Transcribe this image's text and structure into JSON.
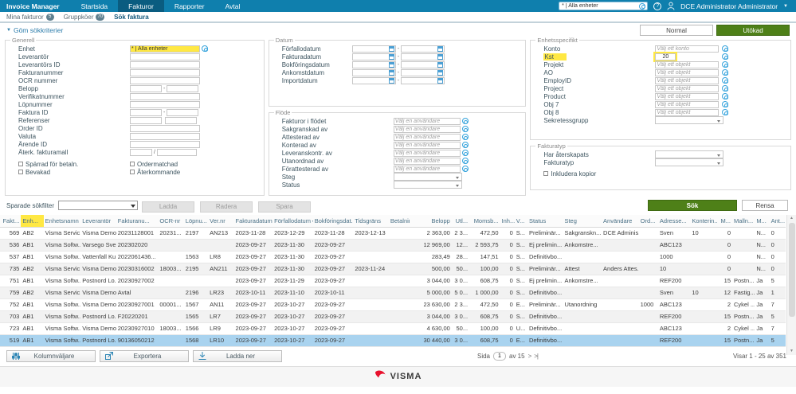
{
  "topnav": {
    "brand": "Invoice Manager",
    "items": [
      {
        "label": "Startsida",
        "active": false
      },
      {
        "label": "Fakturor",
        "active": true
      },
      {
        "label": "Rapporter",
        "active": false
      },
      {
        "label": "Avtal",
        "active": false
      }
    ],
    "unit_filter": {
      "value": "* | Alla enheter"
    },
    "help_label": "?",
    "user": "DCE Administrator Administrator"
  },
  "subnav": {
    "items": [
      {
        "label": "Mina fakturor",
        "badge": "5",
        "active": false
      },
      {
        "label": "Gruppköer",
        "badge": "70",
        "active": false
      },
      {
        "label": "Sök faktura",
        "active": true
      }
    ]
  },
  "toolbar": {
    "hide_criteria": "Göm sökkriterier",
    "normal": "Normal",
    "extended": "Utökad"
  },
  "form": {
    "generell": {
      "legend": "Generell",
      "fields": [
        {
          "label": "Enhet",
          "type": "unit",
          "value": "* | Alla enheter",
          "highlight_value": true
        },
        {
          "label": "Leverantör",
          "type": "text"
        },
        {
          "label": "Leverantörs ID",
          "type": "text"
        },
        {
          "label": "Fakturanummer",
          "type": "text"
        },
        {
          "label": "OCR nummer",
          "type": "text"
        },
        {
          "label": "Belopp",
          "type": "range"
        },
        {
          "label": "Verifikatnummer",
          "type": "text"
        },
        {
          "label": "Löpnummer",
          "type": "text"
        },
        {
          "label": "Faktura ID",
          "type": "range"
        },
        {
          "label": "Referenser",
          "type": "pair"
        },
        {
          "label": "Order ID",
          "type": "text"
        },
        {
          "label": "Valuta",
          "type": "text"
        },
        {
          "label": "Ärende ID",
          "type": "text"
        },
        {
          "label": "Återk. fakturamall",
          "type": "slash"
        }
      ],
      "checkbox_columns": [
        [
          "Spärrad för betaln.",
          "Bevakad"
        ],
        [
          "Ordermatchad",
          "Återkommande"
        ]
      ]
    },
    "datum": {
      "legend": "Datum",
      "fields": [
        "Förfallodatum",
        "Fakturadatum",
        "Bokföringsdatum",
        "Ankomstdatum",
        "Importdatum"
      ]
    },
    "flode": {
      "legend": "Flöde",
      "placeholder": "Välj en användare",
      "user_fields": [
        "Fakturor i flödet",
        "Sakgranskad av",
        "Attesterad av",
        "Konterad av",
        "Leveranskontr. av",
        "Utanordnad av",
        "Förattesterad av"
      ],
      "selects": [
        "Steg",
        "Status"
      ]
    },
    "enhetsspecifikt": {
      "legend": "Enhetsspecifikt",
      "fields": [
        {
          "label": "Konto",
          "placeholder": "Välj ett konto"
        },
        {
          "label": "Kst",
          "value": "20",
          "highlight": true
        },
        {
          "label": "Projekt",
          "placeholder": "Välj ett objekt"
        },
        {
          "label": "AO",
          "placeholder": "Välj ett objekt"
        },
        {
          "label": "EmployID",
          "placeholder": "Välj ett objekt"
        },
        {
          "label": "Project",
          "placeholder": "Välj ett objekt"
        },
        {
          "label": "Product",
          "placeholder": "Välj ett objekt"
        },
        {
          "label": "Obj 7",
          "placeholder": "Välj ett objekt"
        },
        {
          "label": "Obj 8",
          "placeholder": "Välj ett objekt"
        }
      ],
      "select_label": "Sekretessgrupp"
    },
    "fakturatyp": {
      "legend": "Fakturatyp",
      "selects": [
        "Har återskapats",
        "Fakturatyp"
      ],
      "checkbox": "Inkludera kopior"
    },
    "saved_filter": {
      "label": "Sparade sökfilter",
      "buttons": [
        "Ladda",
        "Radera",
        "Spara"
      ]
    },
    "search_button": "Sök",
    "clear_button": "Rensa"
  },
  "table": {
    "columns": [
      {
        "label": "Fakt...",
        "align": "right"
      },
      {
        "label": "Enh...",
        "highlight": true
      },
      {
        "label": "Enhetsnamn"
      },
      {
        "label": "Leverantör"
      },
      {
        "label": "Fakturanu..."
      },
      {
        "label": "OCR-nr"
      },
      {
        "label": "Löpnu..."
      },
      {
        "label": "Ver.nr"
      },
      {
        "label": "Fakturadatum"
      },
      {
        "label": "Förfallodatum",
        "sort": "desc"
      },
      {
        "label": "Bokföringsdat..."
      },
      {
        "label": "Tidsgräns"
      },
      {
        "label": "Betalningsdat..."
      },
      {
        "label": "Belopp",
        "align": "right"
      },
      {
        "label": "Utl...",
        "align": "right"
      },
      {
        "label": "Momsb...",
        "align": "right"
      },
      {
        "label": "Inh...",
        "align": "right"
      },
      {
        "label": "V..."
      },
      {
        "label": "Status"
      },
      {
        "label": "Steg"
      },
      {
        "label": "Användare"
      },
      {
        "label": "Ord..."
      },
      {
        "label": "Adresse..."
      },
      {
        "label": "Konterin..."
      },
      {
        "label": "M...",
        "align": "right"
      },
      {
        "label": "Malln..."
      },
      {
        "label": "M..."
      },
      {
        "label": "Ant..."
      }
    ],
    "rows": [
      [
        "569",
        "AB2",
        "Visma Servic...",
        "Visma Demo...",
        "20231128001",
        "20231...",
        "2197",
        "AN213",
        "2023-11-28",
        "2023-12-29",
        "2023-11-28",
        "2023-12-13",
        "",
        "2 363,00",
        "2 3...",
        "472,50",
        "0",
        "S...",
        "Preliminär...",
        "Sakgranskn...",
        "DCE Adminis...",
        "",
        "Sven",
        "10",
        "0",
        "",
        "N...",
        "0"
      ],
      [
        "536",
        "AB1",
        "Visma Softw...",
        "Varsego Sver...",
        "202302020",
        "",
        "",
        "",
        "2023-09-27",
        "2023-11-30",
        "2023-09-27",
        "",
        "",
        "12 969,00",
        "12...",
        "2 593,75",
        "0",
        "S...",
        "Ej prelimin...",
        "Ankomstre...",
        "",
        "",
        "ABC123",
        "",
        "0",
        "",
        "N...",
        "0"
      ],
      [
        "537",
        "AB1",
        "Visma Softw...",
        "Vattenfall Ku...",
        "2022061436...",
        "",
        "1563",
        "LR8",
        "2023-09-27",
        "2023-11-30",
        "2023-09-27",
        "",
        "",
        "283,49",
        "28...",
        "147,51",
        "0",
        "S...",
        "Definitivbo...",
        "",
        "",
        "",
        "1000",
        "",
        "0",
        "",
        "N...",
        "0"
      ],
      [
        "735",
        "AB2",
        "Visma Servic...",
        "Visma Demo...",
        "20230316002",
        "18003...",
        "2195",
        "AN211",
        "2023-09-27",
        "2023-11-30",
        "2023-09-27",
        "2023-11-24",
        "",
        "500,00",
        "50...",
        "100,00",
        "0",
        "S...",
        "Preliminär...",
        "Attest",
        "Anders Attes...",
        "",
        "10",
        "",
        "0",
        "",
        "N...",
        "0"
      ],
      [
        "751",
        "AB1",
        "Visma Softw...",
        "Postnord Lo...",
        "20230927002",
        "",
        "",
        "",
        "2023-09-27",
        "2023-11-29",
        "2023-09-27",
        "",
        "",
        "3 044,00",
        "3 0...",
        "608,75",
        "0",
        "S...",
        "Ej prelimin...",
        "Ankomstre...",
        "",
        "",
        "REF200",
        "",
        "15",
        "Postn...",
        "Ja",
        "5"
      ],
      [
        "759",
        "AB2",
        "Visma Servic...",
        "Visma Demo...",
        "Avtal",
        "",
        "2196",
        "LR23",
        "2023-10-11",
        "2023-11-10",
        "2023-10-11",
        "",
        "",
        "5 000,00",
        "5 0...",
        "1 000,00",
        "0",
        "S...",
        "Definitivbo...",
        "",
        "",
        "",
        "Sven",
        "10",
        "12",
        "Fastig...",
        "Ja",
        "1"
      ],
      [
        "752",
        "AB1",
        "Visma Softw...",
        "Visma Demo...",
        "20230927001",
        "00001...",
        "1567",
        "AN11",
        "2023-09-27",
        "2023-10-27",
        "2023-09-27",
        "",
        "",
        "23 630,00",
        "2 3...",
        "472,50",
        "0",
        "E...",
        "Preliminär...",
        "Utanordning",
        "",
        "1000",
        "ABC123",
        "",
        "2",
        "Cykel ...",
        "Ja",
        "7"
      ],
      [
        "703",
        "AB1",
        "Visma Softw...",
        "Postnord Lo...",
        "F20220201",
        "",
        "1565",
        "LR7",
        "2023-09-27",
        "2023-10-27",
        "2023-09-27",
        "",
        "",
        "3 044,00",
        "3 0...",
        "608,75",
        "0",
        "S...",
        "Definitivbo...",
        "",
        "",
        "",
        "REF200",
        "",
        "15",
        "Postn...",
        "Ja",
        "5"
      ],
      [
        "723",
        "AB1",
        "Visma Softw...",
        "Visma Demo...",
        "20230927010",
        "18003...",
        "1566",
        "LR9",
        "2023-09-27",
        "2023-10-27",
        "2023-09-27",
        "",
        "",
        "4 630,00",
        "50...",
        "100,00",
        "0",
        "U...",
        "Definitivbo...",
        "",
        "",
        "",
        "ABC123",
        "",
        "2",
        "Cykel ...",
        "Ja",
        "7"
      ],
      [
        "519",
        "AB1",
        "Visma Softw...",
        "Postnord Lo...",
        "90136050212",
        "",
        "1568",
        "LR10",
        "2023-09-27",
        "2023-10-27",
        "2023-09-27",
        "",
        "",
        "30 440,00",
        "3 0...",
        "608,75",
        "0",
        "E...",
        "Definitivbo...",
        "",
        "",
        "",
        "REF200",
        "",
        "15",
        "Postn...",
        "Ja",
        "5"
      ]
    ],
    "selected_row_index": 9
  },
  "footer": {
    "buttons": [
      {
        "label": "Kolumnväljare",
        "icon": "sliders-icon"
      },
      {
        "label": "Exportera",
        "icon": "export-icon"
      },
      {
        "label": "Ladda ner",
        "icon": "download-icon"
      }
    ],
    "pagination": {
      "page_label": "Sida",
      "page": "1",
      "of": "av 15",
      "next": ">",
      "last": ">|"
    },
    "showing": "Visar 1 - 25 av 351",
    "logo": "VISMA"
  },
  "colors": {
    "topnav_bg": "#0f7fad",
    "topnav_active_bg": "#0a5c80",
    "green_button": "#4e8018",
    "highlight_yellow": "#ffe843",
    "selected_row": "#a9d3ef",
    "visma_red": "#e8112d"
  }
}
